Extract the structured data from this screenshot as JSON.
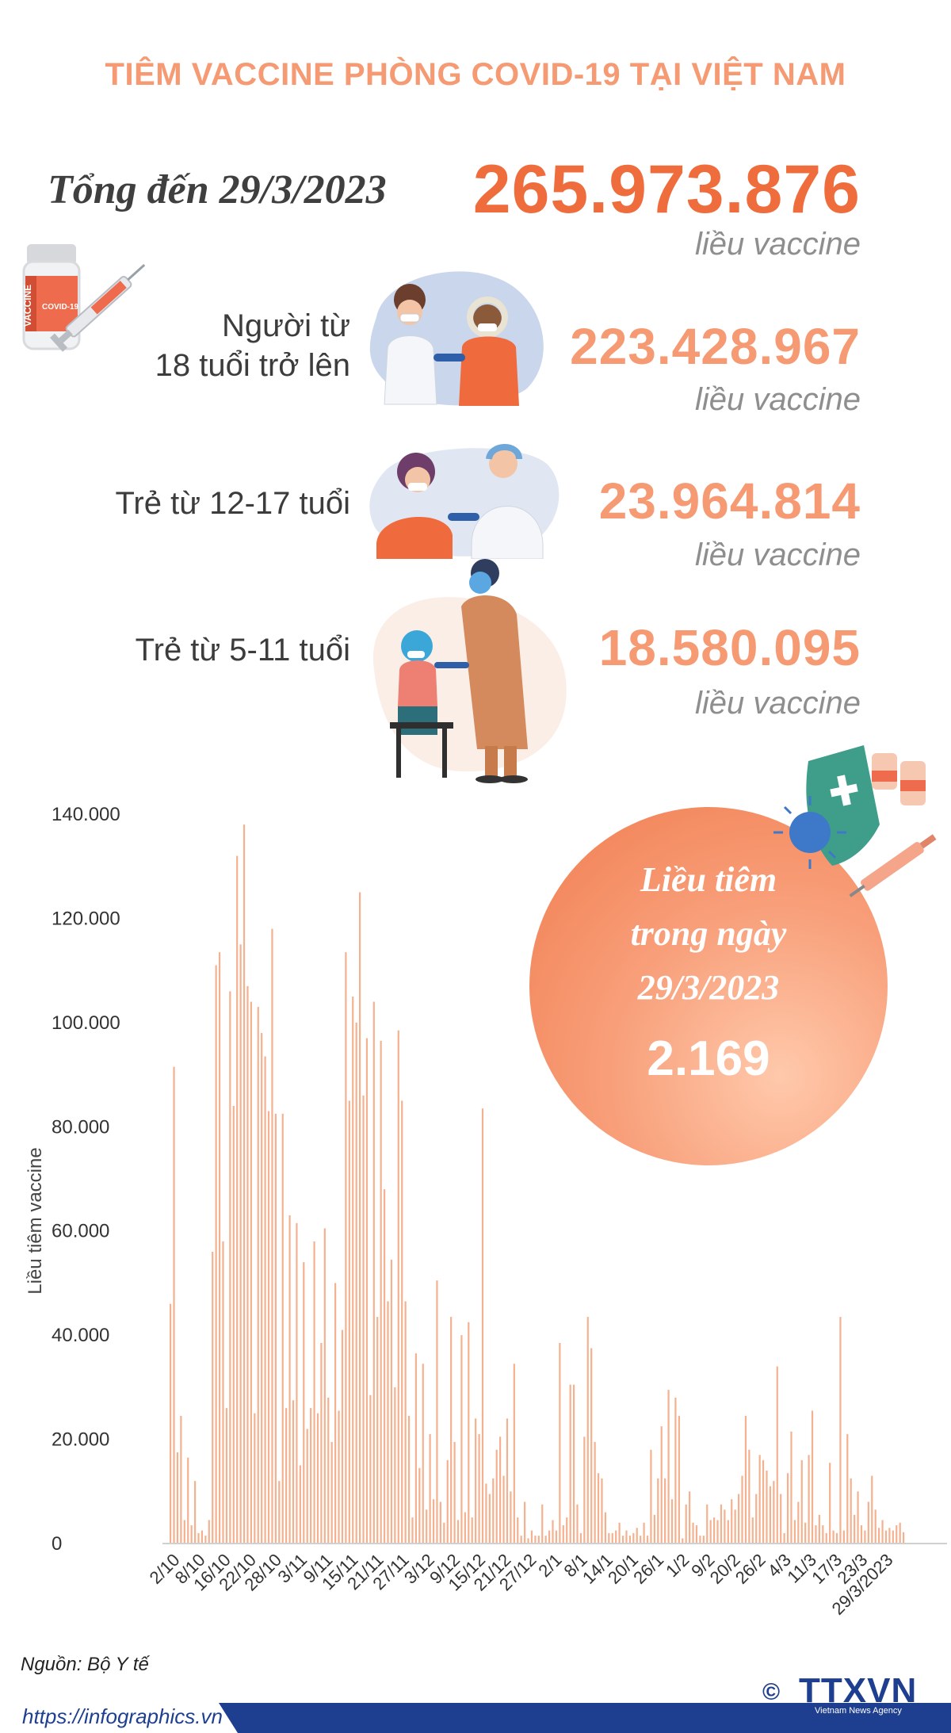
{
  "title": "TIÊM VACCINE PHÒNG COVID-19 TẠI VIỆT NAM",
  "total": {
    "label": "Tổng đến 29/3/2023",
    "value": "265.973.876",
    "unit": "liều vaccine"
  },
  "categories": [
    {
      "label_line1": "Người từ",
      "label_line2": "18 tuổi trở lên",
      "value": "223.428.967",
      "unit": "liều vaccine"
    },
    {
      "label_line1": "Trẻ từ 12-17 tuổi",
      "label_line2": "",
      "value": "23.964.814",
      "unit": "liều vaccine"
    },
    {
      "label_line1": "Trẻ từ 5-11 tuổi",
      "label_line2": "",
      "value": "18.580.095",
      "unit": "liều vaccine"
    }
  ],
  "vial_label": "VACCINE",
  "vial_sublabel": "COVID-19",
  "daily": {
    "line1": "Liều tiêm",
    "line2": "trong ngày",
    "date": "29/3/2023",
    "value": "2.169"
  },
  "source": "Nguồn: Bộ Y tế",
  "url": "https://infographics.vn",
  "logo": {
    "text": "TTXVN",
    "sub": "Vietnam News Agency",
    "copyright": "©"
  },
  "colors": {
    "accent": "#f59a72",
    "accent_dark": "#ef6c3c",
    "bar": "#f4b18f",
    "navy": "#1e3f8f"
  },
  "chart_data": {
    "type": "bar",
    "ylabel": "Liều tiêm vaccine",
    "ylim": [
      0,
      140000
    ],
    "yticks": [
      "0",
      "20.000",
      "40.000",
      "60.000",
      "80.000",
      "100.000",
      "120.000",
      "140.000"
    ],
    "ytick_values": [
      0,
      20000,
      40000,
      60000,
      80000,
      100000,
      120000,
      140000
    ],
    "xtick_labels": [
      "2/10",
      "8/10",
      "16/10",
      "22/10",
      "28/10",
      "3/11",
      "9/11",
      "15/11",
      "21/11",
      "27/11",
      "3/12",
      "9/12",
      "15/12",
      "21/12",
      "27/12",
      "2/1",
      "8/1",
      "14/1",
      "20/1",
      "26/1",
      "1/2",
      "9/2",
      "20/2",
      "26/2",
      "4/3",
      "11/3",
      "17/3",
      "23/3",
      "29/3/2023"
    ],
    "values": [
      46000,
      91500,
      17500,
      24500,
      4500,
      16500,
      3500,
      12000,
      2000,
      2500,
      1500,
      4500,
      56000,
      111000,
      113500,
      58000,
      26000,
      106000,
      84000,
      132000,
      115000,
      138000,
      107000,
      104000,
      25000,
      103000,
      98000,
      93500,
      83000,
      118000,
      82500,
      12000,
      82500,
      26000,
      63000,
      27500,
      61500,
      15000,
      54000,
      22000,
      26000,
      58000,
      25000,
      38500,
      60500,
      28000,
      19500,
      50000,
      25500,
      41000,
      113500,
      85000,
      105000,
      100000,
      125000,
      86000,
      97000,
      28500,
      104000,
      43500,
      96500,
      68000,
      46500,
      54500,
      30000,
      98500,
      85000,
      46500,
      24500,
      5000,
      36500,
      14500,
      34500,
      6500,
      21000,
      8500,
      50500,
      8000,
      4000,
      16000,
      43500,
      19500,
      4500,
      40000,
      6000,
      42500,
      5000,
      24000,
      21000,
      83500,
      11500,
      9500,
      12500,
      18000,
      20500,
      13000,
      24000,
      10000,
      34500,
      5000,
      1500,
      8000,
      1000,
      2500,
      1500,
      1500,
      7500,
      1500,
      2500,
      4500,
      2500,
      38500,
      3500,
      5000,
      30500,
      30500,
      7500,
      2000,
      20500,
      43500,
      37500,
      19500,
      13500,
      12500,
      6000,
      2000,
      2000,
      2500,
      4000,
      1500,
      2500,
      1500,
      2000,
      3000,
      1500,
      4000,
      1500,
      18000,
      5500,
      12500,
      22500,
      12500,
      29500,
      8500,
      28000,
      24500,
      1000,
      7500,
      10000,
      4000,
      3500,
      1500,
      1500,
      7500,
      4500,
      5000,
      4500,
      7500,
      6500,
      4500,
      8500,
      6500,
      9500,
      13000,
      24500,
      18000,
      5000,
      9500,
      17000,
      16000,
      14000,
      11000,
      12000,
      34000,
      9500,
      2000,
      13500,
      21500,
      4500,
      8000,
      16000,
      4000,
      17000,
      25500,
      3500,
      5500,
      3500,
      2000,
      15500,
      2500,
      2000,
      43500,
      2500,
      21000,
      12500,
      5500,
      10000,
      3500,
      2500,
      8000,
      13000,
      6500,
      3000,
      4500,
      2500,
      3000,
      2500,
      3500,
      4000,
      2169
    ]
  }
}
